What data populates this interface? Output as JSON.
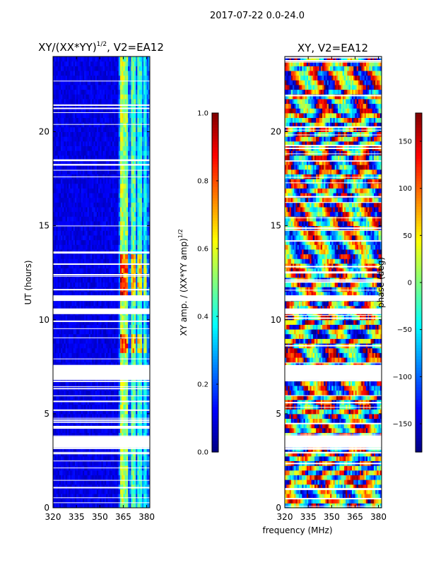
{
  "figure": {
    "suptitle": "2017-07-22 0.0-24.0",
    "xlabel": "frequency (MHz)",
    "ylabel": "UT (hours)"
  },
  "chart_data": [
    {
      "type": "heatmap",
      "title_main": "XY/(XX*YY)",
      "title_sup": "1/2",
      "title_rest": ", V2=EA12",
      "xlim": [
        320,
        382
      ],
      "ylim": [
        0,
        24
      ],
      "xticks": [
        320,
        335,
        350,
        365,
        380
      ],
      "yticks": [
        0,
        5,
        10,
        15,
        20
      ],
      "colorbar": {
        "label_main": "XY amp. / (XX*YY amp)",
        "label_sup": "1/2",
        "range": [
          0.0,
          1.0
        ],
        "ticks": [
          "0.0",
          "0.2",
          "0.4",
          "0.6",
          "0.8",
          "1.0"
        ],
        "tick_values": [
          0.0,
          0.2,
          0.4,
          0.6,
          0.8,
          1.0
        ]
      },
      "bright_bands_mhz": [
        {
          "center": 364,
          "value": 0.6
        },
        {
          "center": 366.5,
          "value": 0.55
        },
        {
          "center": 371.5,
          "value": 0.5
        },
        {
          "center": 375.5,
          "value": 0.45
        },
        {
          "center": 379,
          "value": 0.4
        }
      ],
      "high_amp_hours": [
        [
          8.2,
          9.2
        ],
        [
          11.2,
          13.5
        ]
      ],
      "flagged_hours": [
        [
          3.2,
          3.8
        ],
        [
          6.8,
          7.6
        ],
        [
          10.3,
          10.6
        ],
        [
          11.0,
          11.3
        ]
      ]
    },
    {
      "type": "heatmap",
      "title": "XY, V2=EA12",
      "xlim": [
        320,
        382
      ],
      "ylim": [
        0,
        24
      ],
      "xticks": [
        320,
        335,
        350,
        365,
        380
      ],
      "yticks": [
        0,
        5,
        10,
        15,
        20
      ],
      "colorbar": {
        "label": "phase (deg)",
        "range": [
          -180,
          180
        ],
        "ticks": [
          "150",
          "100",
          "50",
          "0",
          "−50",
          "−100",
          "−150"
        ],
        "tick_values": [
          150,
          100,
          50,
          0,
          -50,
          -100,
          -150
        ]
      },
      "flagged_hours": [
        [
          3.2,
          3.8
        ],
        [
          6.8,
          7.6
        ],
        [
          10.3,
          10.6
        ],
        [
          11.0,
          11.3
        ]
      ]
    }
  ]
}
